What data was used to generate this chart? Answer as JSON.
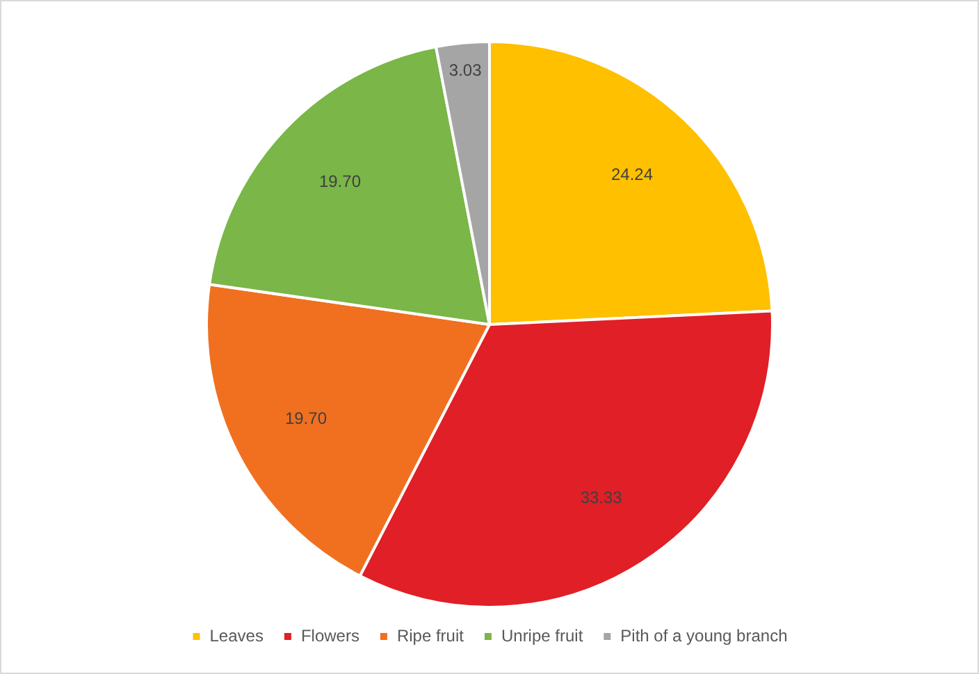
{
  "chart_data": {
    "type": "pie",
    "categories": [
      "Leaves",
      "Flowers",
      "Ripe fruit",
      "Unripe fruit",
      "Pith of a young branch"
    ],
    "values": [
      24.24,
      33.33,
      19.7,
      19.7,
      3.03
    ],
    "value_labels": [
      "24.24",
      "33.33",
      "19.70",
      "19.70",
      "3.03"
    ],
    "colors": [
      "#ffc000",
      "#e01f26",
      "#f07020",
      "#7ab648",
      "#a5a5a5"
    ],
    "legend": "bottom"
  }
}
